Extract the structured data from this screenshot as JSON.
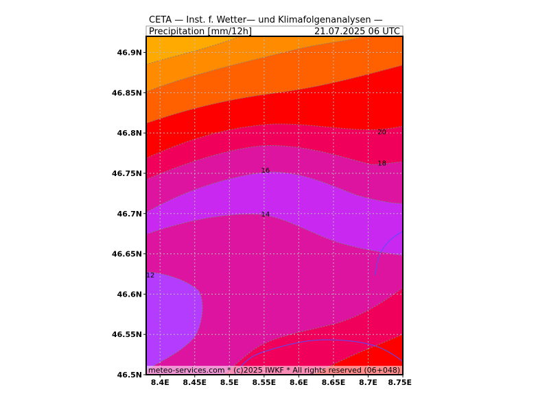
{
  "chart_data": {
    "type": "contour-map",
    "title": "CETA — Inst. f. Wetter— und Klimafolgenanalysen —",
    "variable": "Precipitation [mm/12h]",
    "timestamp": "21.07.2025  06 UTC",
    "footer": "meteo-services.com * (c)2025 IWKF * All rights reserved (06+048)",
    "x_axis": {
      "ticks": [
        8.4,
        8.45,
        8.5,
        8.55,
        8.6,
        8.65,
        8.7,
        8.75
      ],
      "tick_labels": [
        "8.4E",
        "8.45E",
        "8.5E",
        "8.55E",
        "8.6E",
        "8.65E",
        "8.7E",
        "8.75E"
      ],
      "range": [
        8.38,
        8.75
      ]
    },
    "y_axis": {
      "ticks": [
        46.5,
        46.55,
        46.6,
        46.65,
        46.7,
        46.75,
        46.8,
        46.85,
        46.9
      ],
      "tick_labels": [
        "46.5N",
        "46.55N",
        "46.6N",
        "46.65N",
        "46.7N",
        "46.75N",
        "46.8N",
        "46.85N",
        "46.9N"
      ],
      "range": [
        46.5,
        46.92
      ]
    },
    "grid": true,
    "contour_bands": [
      {
        "colour": "#ffaa00"
      },
      {
        "colour": "#ff8c00"
      },
      {
        "colour": "#ff6000"
      },
      {
        "colour": "#ff0000"
      },
      {
        "colour": "#f0005a"
      },
      {
        "colour": "#dc14a0"
      },
      {
        "colour": "#c828f0"
      },
      {
        "colour": "#b43cff"
      }
    ],
    "contour_labels": [
      {
        "text": "20",
        "lon": 8.72,
        "lat": 46.802
      },
      {
        "text": "18",
        "lon": 8.72,
        "lat": 46.763
      },
      {
        "text": "16",
        "lon": 8.552,
        "lat": 46.754
      },
      {
        "text": "14",
        "lon": 8.552,
        "lat": 46.7
      },
      {
        "text": "12",
        "lon": 8.386,
        "lat": 46.624
      }
    ],
    "overlay_line_colour": "#5050ff"
  }
}
